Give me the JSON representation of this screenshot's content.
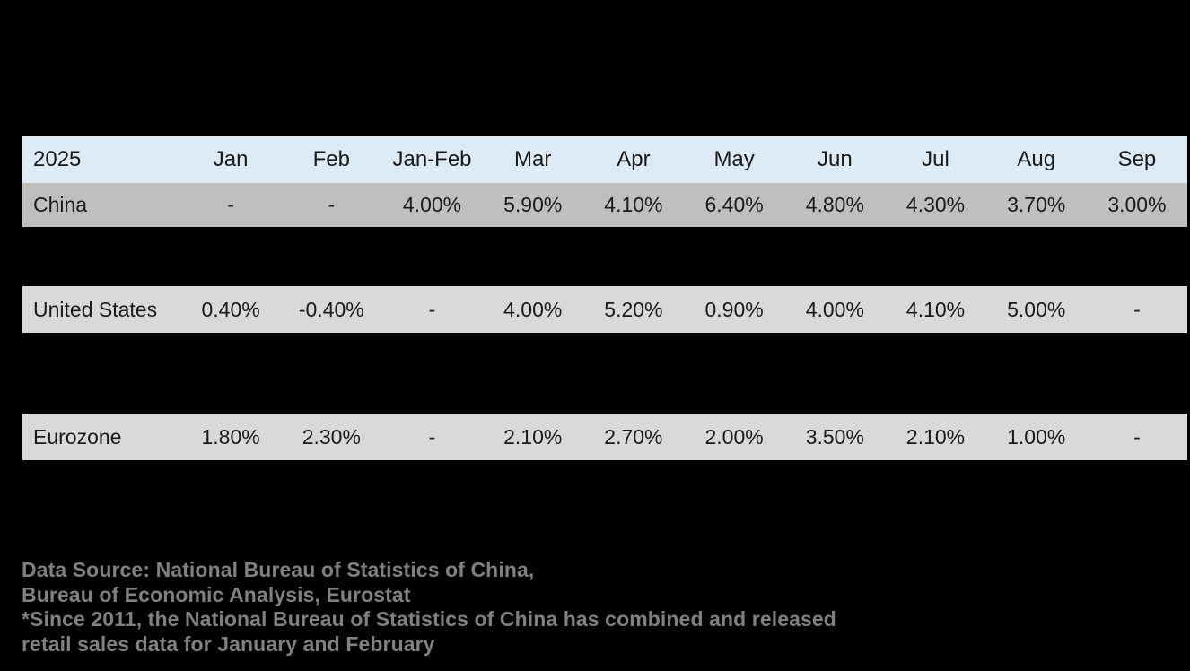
{
  "background_color": "#000000",
  "table": {
    "header": {
      "year_label": "2025",
      "months": [
        "Jan",
        "Feb",
        "Jan-Feb",
        "Mar",
        "Apr",
        "May",
        "Jun",
        "Jul",
        "Aug",
        "Sep"
      ],
      "bg": "#DDEBF7",
      "text_color": "#1a1a1a"
    },
    "rows": [
      {
        "label": "China",
        "bg": "#BFBFBF",
        "values": [
          "-",
          "-",
          "4.00%",
          "5.90%",
          "4.10%",
          "6.40%",
          "4.80%",
          "4.30%",
          "3.70%",
          "3.00%"
        ]
      },
      {
        "label": "United States",
        "bg": "#D9D9D9",
        "values": [
          "0.40%",
          "-0.40%",
          "-",
          "4.00%",
          "5.20%",
          "0.90%",
          "4.00%",
          "4.10%",
          "5.00%",
          "-"
        ]
      },
      {
        "label": "Eurozone",
        "bg": "#D9D9D9",
        "values": [
          "1.80%",
          "2.30%",
          "-",
          "2.10%",
          "2.70%",
          "2.00%",
          "3.50%",
          "2.10%",
          "1.00%",
          "-"
        ]
      }
    ]
  },
  "footer": {
    "text_color": "#808080",
    "lines": [
      "Data Source: National Bureau of Statistics of China,",
      "Bureau of Economic Analysis, Eurostat",
      "*Since 2011, the National Bureau of Statistics of China has combined and released",
      "retail sales data for January and February"
    ]
  },
  "chart_data": {
    "type": "table",
    "title": "",
    "columns": [
      "2025",
      "Jan",
      "Feb",
      "Jan-Feb",
      "Mar",
      "Apr",
      "May",
      "Jun",
      "Jul",
      "Aug",
      "Sep"
    ],
    "rows": [
      [
        "China",
        "-",
        "-",
        "4.00%",
        "5.90%",
        "4.10%",
        "6.40%",
        "4.80%",
        "4.30%",
        "3.70%",
        "3.00%"
      ],
      [
        "United States",
        "0.40%",
        "-0.40%",
        "-",
        "4.00%",
        "5.20%",
        "0.90%",
        "4.00%",
        "4.10%",
        "5.00%",
        "-"
      ],
      [
        "Eurozone",
        "1.80%",
        "2.30%",
        "-",
        "2.10%",
        "2.70%",
        "2.00%",
        "3.50%",
        "2.10%",
        "1.00%",
        "-"
      ]
    ],
    "annotations": [
      "Data Source: National Bureau of Statistics of China, Bureau of Economic Analysis, Eurostat",
      "*Since 2011, the National Bureau of Statistics of China has combined and released retail sales data for January and February"
    ],
    "layout_hints": {
      "header_bg": "#DDEBF7",
      "row_bgs": [
        "#BFBFBF",
        "#D9D9D9",
        "#D9D9D9"
      ],
      "page_bg": "#000000",
      "rows_separated_by_black_gaps": true
    }
  }
}
